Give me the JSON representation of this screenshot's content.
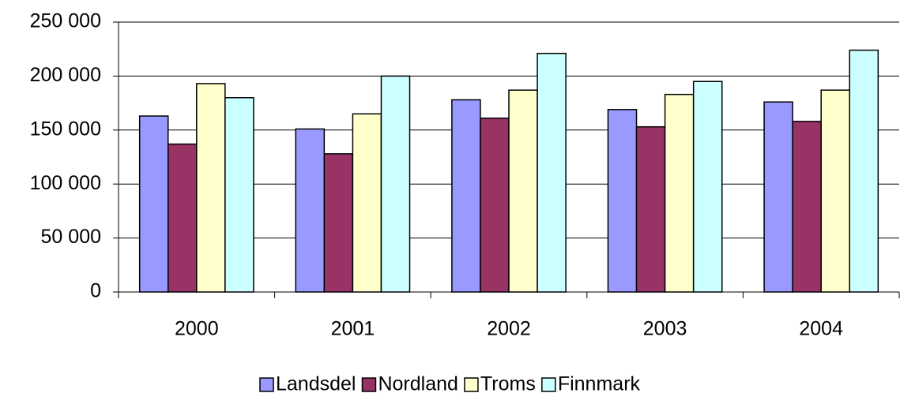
{
  "chart_data": {
    "type": "bar",
    "categories": [
      "2000",
      "2001",
      "2002",
      "2003",
      "2004"
    ],
    "series": [
      {
        "name": "Landsdel",
        "color": "#9999ff",
        "values": [
          163000,
          151000,
          178000,
          169000,
          176000
        ]
      },
      {
        "name": "Nordland",
        "color": "#993366",
        "values": [
          137000,
          128000,
          161000,
          153000,
          158000
        ]
      },
      {
        "name": "Troms",
        "color": "#ffffcc",
        "values": [
          193000,
          165000,
          187000,
          183000,
          187000
        ]
      },
      {
        "name": "Finnmark",
        "color": "#ccffff",
        "values": [
          180000,
          200000,
          221000,
          195000,
          224000
        ]
      }
    ],
    "ylim": [
      0,
      250000
    ],
    "yticks": [
      {
        "value": 0,
        "label": "0"
      },
      {
        "value": 50000,
        "label": "50 000"
      },
      {
        "value": 100000,
        "label": "100 000"
      },
      {
        "value": 150000,
        "label": "150 000"
      },
      {
        "value": 200000,
        "label": "200 000"
      },
      {
        "value": 250000,
        "label": "250 000"
      }
    ],
    "grid": true,
    "legend": "bottom"
  }
}
